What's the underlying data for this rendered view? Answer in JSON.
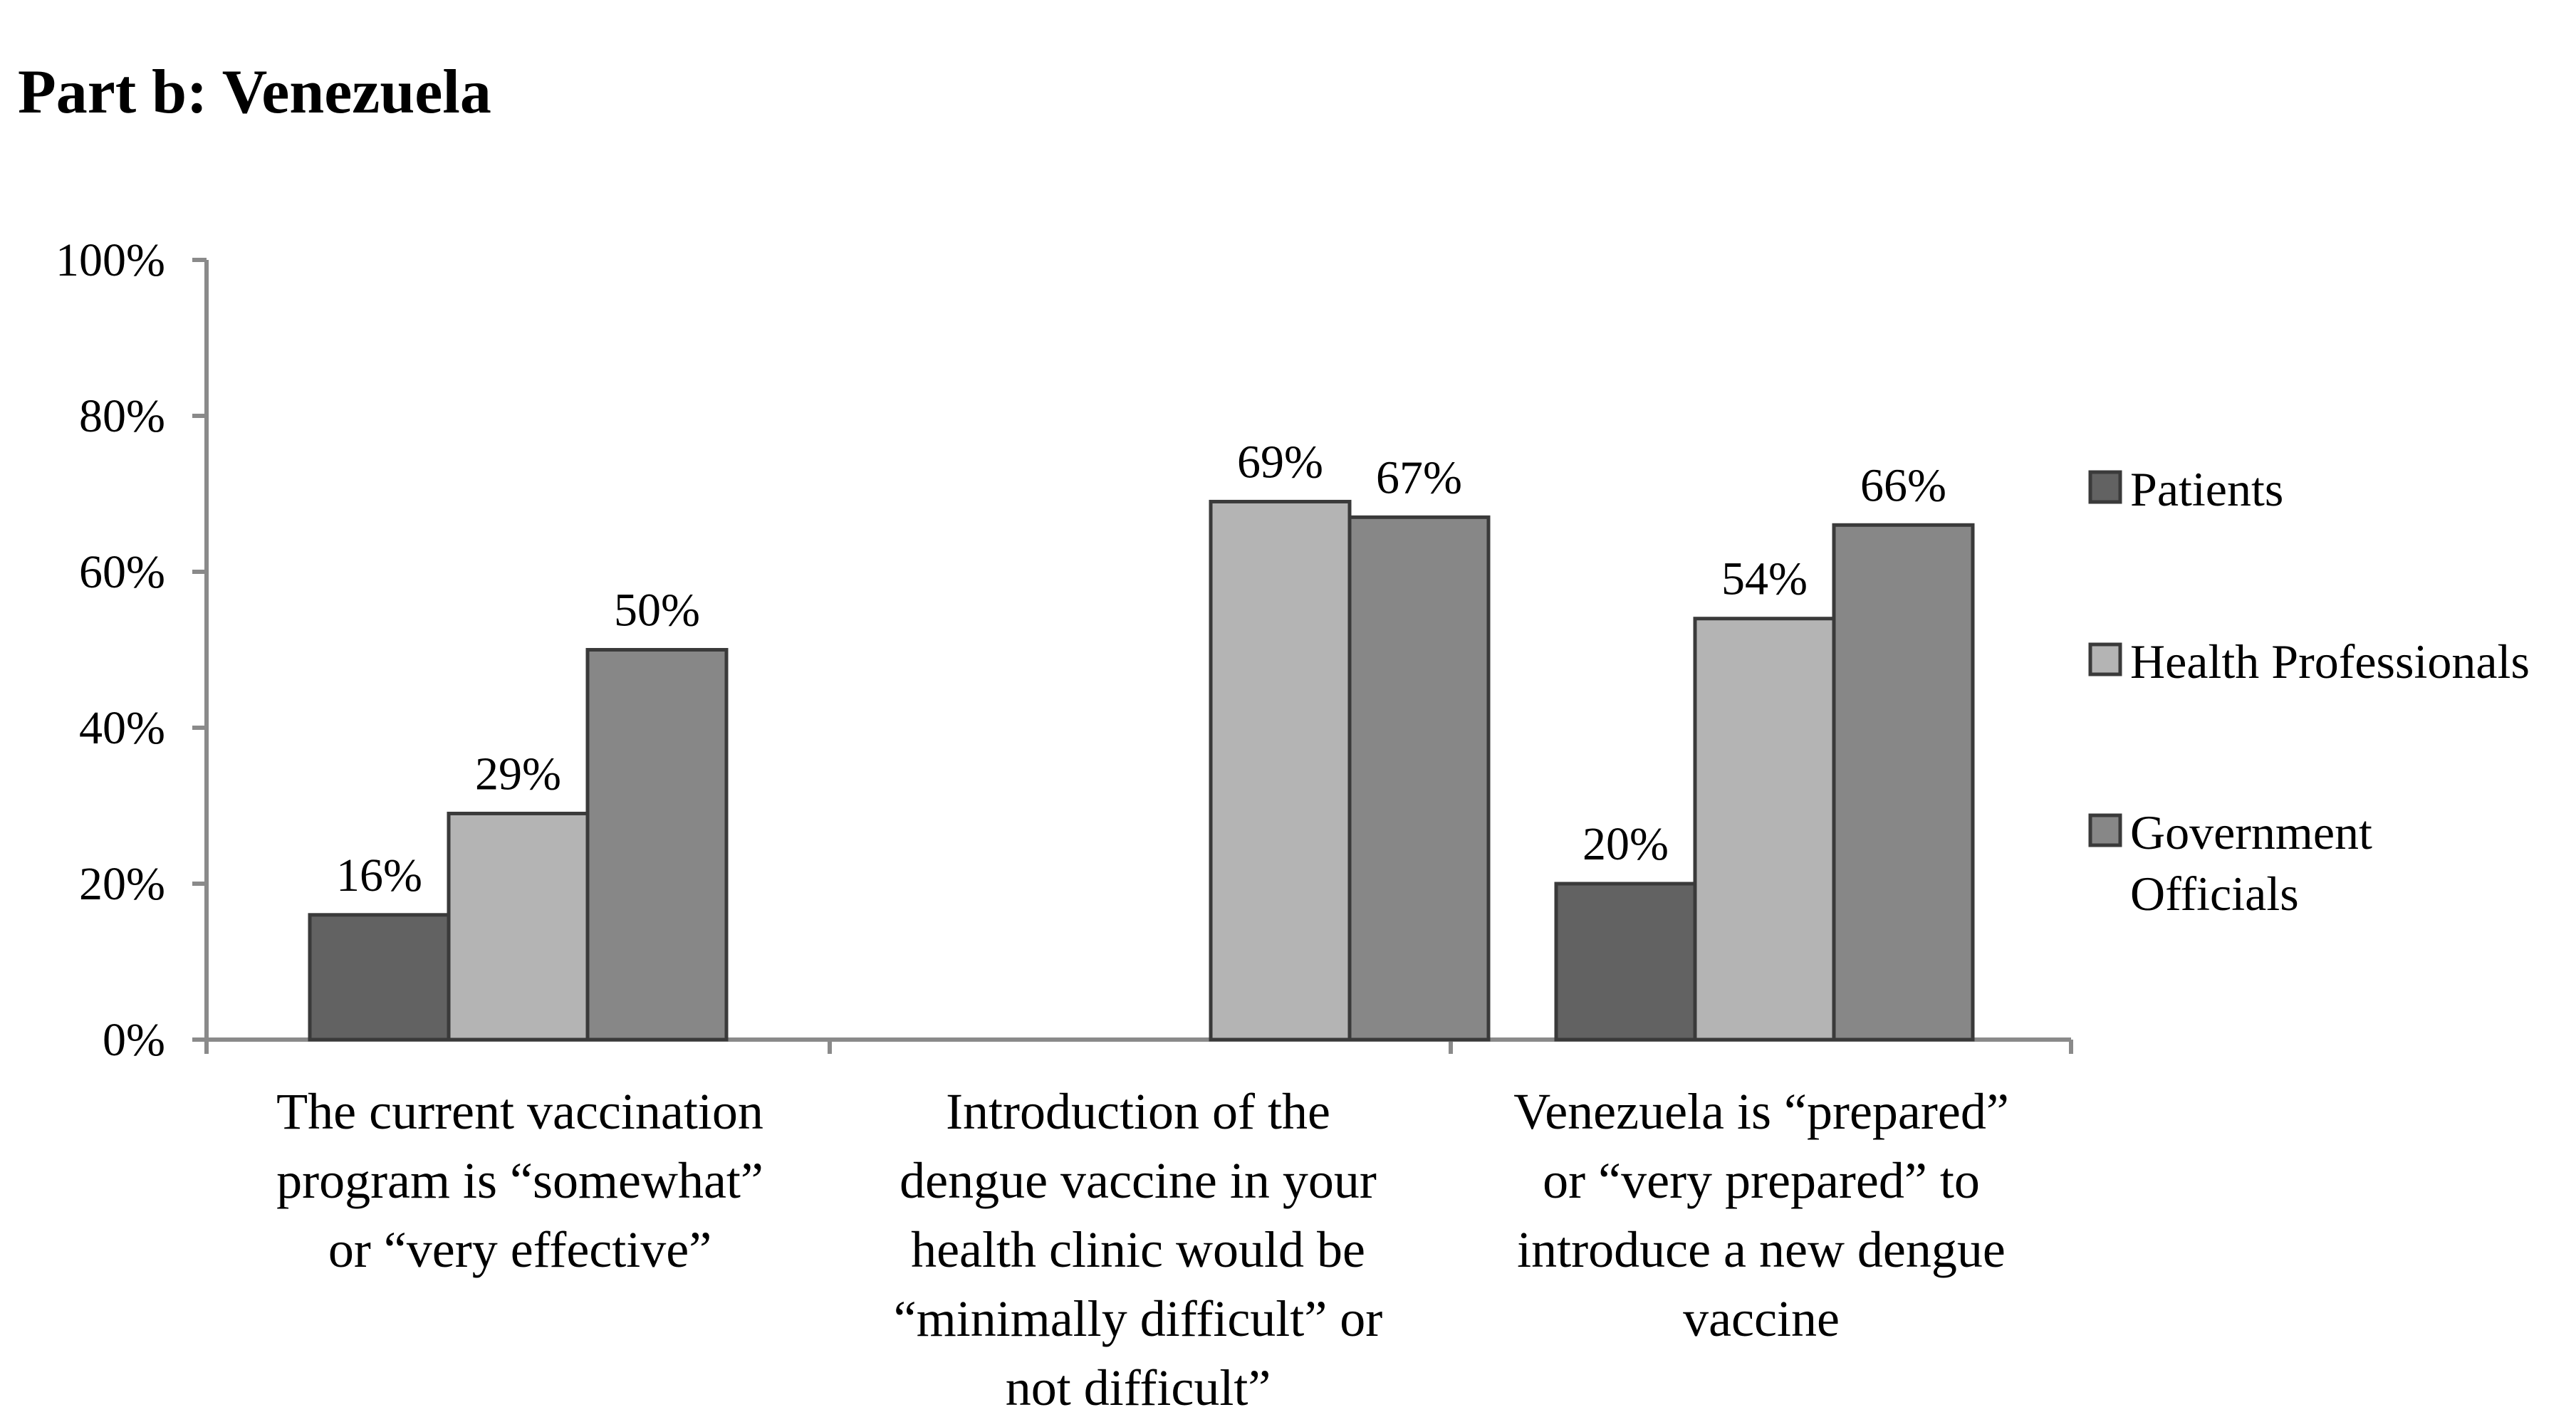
{
  "title": "Part b: Venezuela",
  "chart_data": {
    "type": "bar",
    "title": "Part b: Venezuela",
    "categories": [
      [
        "The current vaccination",
        "program is “somewhat”",
        "or “very effective”"
      ],
      [
        "Introduction of the",
        "dengue vaccine in your",
        "health clinic would be",
        "“minimally difficult” or",
        "not difficult”"
      ],
      [
        "Venezuela is “prepared”",
        "or “very prepared” to",
        "introduce a new dengue",
        "vaccine"
      ]
    ],
    "series": [
      {
        "name": "Patients",
        "values": [
          16,
          null,
          20
        ],
        "color": "#626262"
      },
      {
        "name": "Health Professionals",
        "values": [
          29,
          69,
          54
        ],
        "color": "#b4b4b4"
      },
      {
        "name": "Government Officials",
        "values": [
          50,
          67,
          66
        ],
        "color": "#878787"
      }
    ],
    "value_labels": [
      [
        "16%",
        null,
        "20%"
      ],
      [
        "29%",
        "69%",
        "54%"
      ],
      [
        "50%",
        "67%",
        "66%"
      ]
    ],
    "ylim": [
      0,
      100
    ],
    "yticks": [
      0,
      20,
      40,
      60,
      80,
      100
    ],
    "ytick_labels": [
      "0%",
      "20%",
      "40%",
      "60%",
      "80%",
      "100%"
    ],
    "xlabel": "",
    "ylabel": "",
    "legend_position": "right",
    "legend_labels": [
      [
        "Patients"
      ],
      [
        "Health Professionals"
      ],
      [
        "Government",
        "Officials"
      ]
    ],
    "grid": false
  }
}
